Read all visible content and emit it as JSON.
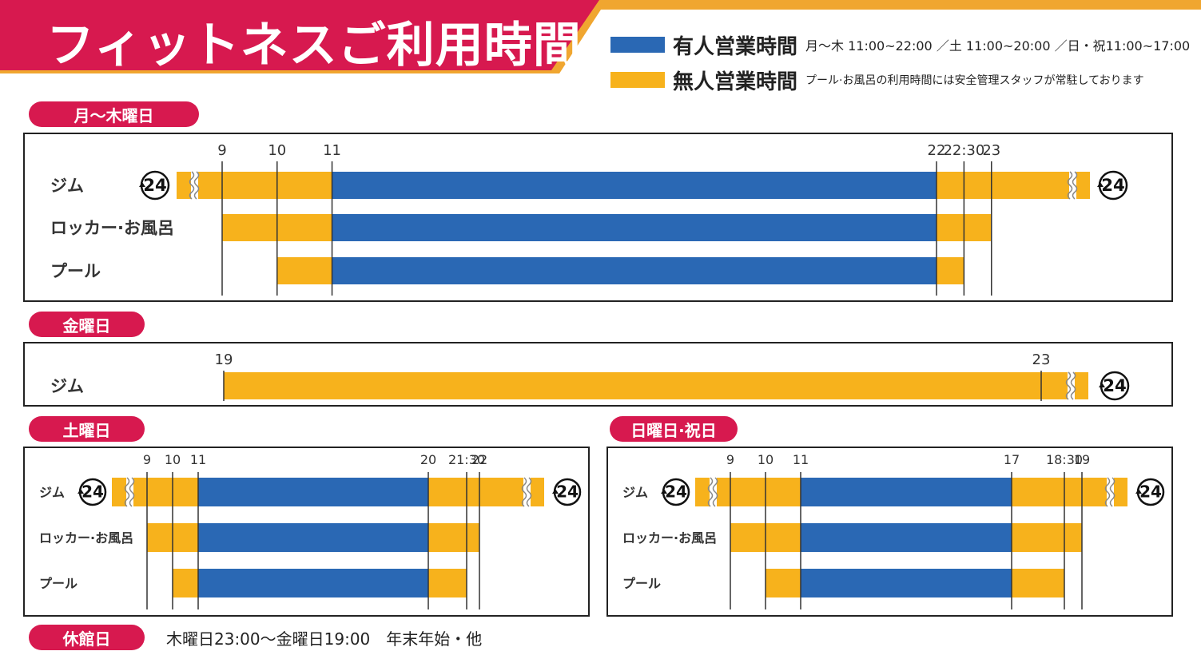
{
  "header": {
    "title": "フィットネスご利用時間",
    "colors": {
      "band": "#d7194f",
      "accent": "#f0a630"
    }
  },
  "legend": {
    "staffed": {
      "label": "有人営業時間",
      "note": "月～木 11:00~22:00 ／土 11:00~20:00 ／日・祝11:00~17:00",
      "color": "#2a68b4"
    },
    "unstaffed": {
      "label": "無人営業時間",
      "note": "プール·お風呂の利用時間には安全管理スタッフが常駐しております",
      "color": "#f7b21c"
    }
  },
  "closed": {
    "label": "休館日",
    "text": "木曜日23:00～金曜日19:00　年末年始・他"
  },
  "badge_24_text": "24",
  "chart_data": [
    {
      "type": "bar",
      "title": "月～木曜日",
      "ticks": [
        {
          "label": "9",
          "value": 9
        },
        {
          "label": "10",
          "value": 10
        },
        {
          "label": "11",
          "value": 11
        },
        {
          "label": "22",
          "value": 22
        },
        {
          "label": "22:30",
          "value": 22.5
        },
        {
          "label": "23",
          "value": 23
        }
      ],
      "rows": [
        {
          "name": "ジム",
          "is_24h": true,
          "segments": [
            {
              "start": 9,
              "end": 11,
              "kind": "unstaffed"
            },
            {
              "start": 11,
              "end": 22,
              "kind": "staffed"
            },
            {
              "start": 22,
              "end": 23,
              "kind": "unstaffed"
            }
          ]
        },
        {
          "name": "ロッカー·お風呂",
          "is_24h": false,
          "segments": [
            {
              "start": 9,
              "end": 11,
              "kind": "unstaffed"
            },
            {
              "start": 11,
              "end": 22,
              "kind": "staffed"
            },
            {
              "start": 22,
              "end": 23,
              "kind": "unstaffed"
            }
          ]
        },
        {
          "name": "プール",
          "is_24h": false,
          "segments": [
            {
              "start": 10,
              "end": 11,
              "kind": "unstaffed"
            },
            {
              "start": 11,
              "end": 22,
              "kind": "staffed"
            },
            {
              "start": 22,
              "end": 22.5,
              "kind": "unstaffed"
            }
          ]
        }
      ]
    },
    {
      "type": "bar",
      "title": "金曜日",
      "ticks": [
        {
          "label": "19",
          "value": 19
        },
        {
          "label": "23",
          "value": 23
        }
      ],
      "rows": [
        {
          "name": "ジム",
          "is_24h": true,
          "segments": [
            {
              "start": 19,
              "end": 23,
              "kind": "unstaffed"
            }
          ]
        }
      ]
    },
    {
      "type": "bar",
      "title": "土曜日",
      "ticks": [
        {
          "label": "9",
          "value": 9
        },
        {
          "label": "10",
          "value": 10
        },
        {
          "label": "11",
          "value": 11
        },
        {
          "label": "20",
          "value": 20
        },
        {
          "label": "21:30",
          "value": 21.5
        },
        {
          "label": "22",
          "value": 22
        }
      ],
      "rows": [
        {
          "name": "ジム",
          "is_24h": true,
          "segments": [
            {
              "start": 9,
              "end": 11,
              "kind": "unstaffed"
            },
            {
              "start": 11,
              "end": 20,
              "kind": "staffed"
            },
            {
              "start": 20,
              "end": 22,
              "kind": "unstaffed"
            }
          ]
        },
        {
          "name": "ロッカー·お風呂",
          "is_24h": false,
          "segments": [
            {
              "start": 9,
              "end": 11,
              "kind": "unstaffed"
            },
            {
              "start": 11,
              "end": 20,
              "kind": "staffed"
            },
            {
              "start": 20,
              "end": 22,
              "kind": "unstaffed"
            }
          ]
        },
        {
          "name": "プール",
          "is_24h": false,
          "segments": [
            {
              "start": 10,
              "end": 11,
              "kind": "unstaffed"
            },
            {
              "start": 11,
              "end": 20,
              "kind": "staffed"
            },
            {
              "start": 20,
              "end": 21.5,
              "kind": "unstaffed"
            }
          ]
        }
      ]
    },
    {
      "type": "bar",
      "title": "日曜日·祝日",
      "ticks": [
        {
          "label": "9",
          "value": 9
        },
        {
          "label": "10",
          "value": 10
        },
        {
          "label": "11",
          "value": 11
        },
        {
          "label": "17",
          "value": 17
        },
        {
          "label": "18:30",
          "value": 18.5
        },
        {
          "label": "19",
          "value": 19
        }
      ],
      "rows": [
        {
          "name": "ジム",
          "is_24h": true,
          "segments": [
            {
              "start": 9,
              "end": 11,
              "kind": "unstaffed"
            },
            {
              "start": 11,
              "end": 17,
              "kind": "staffed"
            },
            {
              "start": 17,
              "end": 19,
              "kind": "unstaffed"
            }
          ]
        },
        {
          "name": "ロッカー·お風呂",
          "is_24h": false,
          "segments": [
            {
              "start": 9,
              "end": 11,
              "kind": "unstaffed"
            },
            {
              "start": 11,
              "end": 17,
              "kind": "staffed"
            },
            {
              "start": 17,
              "end": 19,
              "kind": "unstaffed"
            }
          ]
        },
        {
          "name": "プール",
          "is_24h": false,
          "segments": [
            {
              "start": 10,
              "end": 11,
              "kind": "unstaffed"
            },
            {
              "start": 11,
              "end": 17,
              "kind": "staffed"
            },
            {
              "start": 17,
              "end": 18.5,
              "kind": "unstaffed"
            }
          ]
        }
      ]
    }
  ]
}
